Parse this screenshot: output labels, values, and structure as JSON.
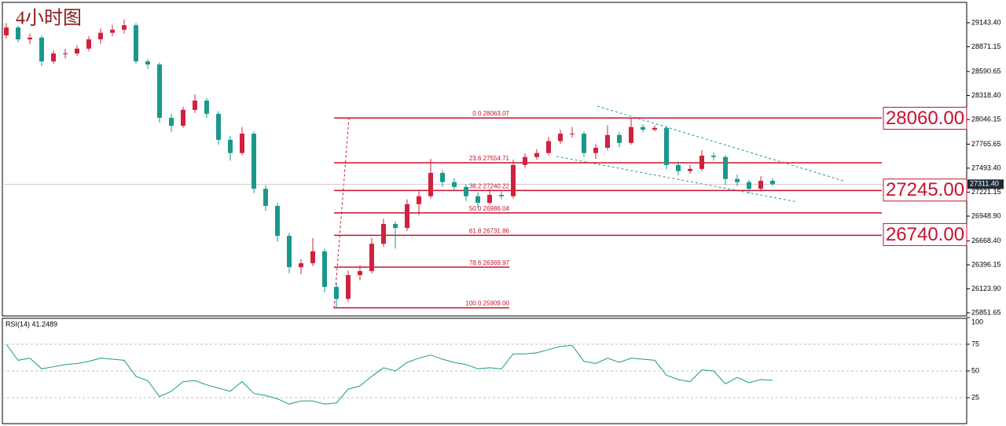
{
  "chart_data": [
    {
      "type": "candlestick",
      "title": "4小时图",
      "up_color": "#d0213f",
      "down_color": "#1a998b",
      "fib_color": "#c8102e",
      "ylim": [
        25816,
        29375
      ],
      "yticks": [
        {
          "value": 29143.4,
          "label": "29143.40"
        },
        {
          "value": 28871.15,
          "label": "28871.15"
        },
        {
          "value": 28590.65,
          "label": "28590.65"
        },
        {
          "value": 28318.4,
          "label": "28318.40"
        },
        {
          "value": 28046.15,
          "label": "28046.15"
        },
        {
          "value": 27765.65,
          "label": "27765.65"
        },
        {
          "value": 27493.4,
          "label": "27493.40"
        },
        {
          "value": 27221.15,
          "label": "27221.15"
        },
        {
          "value": 26948.9,
          "label": "26948.90"
        },
        {
          "value": 26668.4,
          "label": "26668.40"
        },
        {
          "value": 26396.15,
          "label": "26396.15"
        },
        {
          "value": 26123.9,
          "label": "26123.90"
        },
        {
          "value": 25851.65,
          "label": "25851.65"
        }
      ],
      "candles": [
        [
          29000,
          29140,
          28960,
          29090
        ],
        [
          29090,
          29110,
          28920,
          28955
        ],
        [
          28955,
          29020,
          28900,
          28975
        ],
        [
          28975,
          29000,
          28650,
          28705
        ],
        [
          28705,
          28830,
          28680,
          28795
        ],
        [
          28795,
          28850,
          28740,
          28795
        ],
        [
          28795,
          28890,
          28770,
          28850
        ],
        [
          28850,
          28990,
          28820,
          28955
        ],
        [
          28955,
          29080,
          28900,
          29030
        ],
        [
          29030,
          29120,
          28990,
          29065
        ],
        [
          29065,
          29180,
          29020,
          29115
        ],
        [
          29115,
          29140,
          28680,
          28705
        ],
        [
          28705,
          28730,
          28620,
          28670
        ],
        [
          28670,
          28690,
          28010,
          28065
        ],
        [
          28065,
          28110,
          27900,
          27975
        ],
        [
          27975,
          28190,
          27950,
          28155
        ],
        [
          28155,
          28330,
          28120,
          28260
        ],
        [
          28260,
          28290,
          28060,
          28110
        ],
        [
          28110,
          28140,
          27760,
          27815
        ],
        [
          27815,
          27860,
          27580,
          27665
        ],
        [
          27665,
          27960,
          27640,
          27885
        ],
        [
          27885,
          27910,
          27210,
          27260
        ],
        [
          27260,
          27300,
          27010,
          27065
        ],
        [
          27065,
          27100,
          26660,
          26725
        ],
        [
          26725,
          26760,
          26300,
          26370
        ],
        [
          26370,
          26460,
          26290,
          26415
        ],
        [
          26415,
          26700,
          26380,
          26550
        ],
        [
          26550,
          26580,
          26080,
          26145
        ],
        [
          26145,
          26190,
          25909,
          26010
        ],
        [
          26010,
          26330,
          25980,
          26280
        ],
        [
          26280,
          26390,
          26220,
          26325
        ],
        [
          26325,
          26700,
          26300,
          26635
        ],
        [
          26635,
          26920,
          26600,
          26860
        ],
        [
          26860,
          26890,
          26580,
          26815
        ],
        [
          26815,
          27140,
          26780,
          27085
        ],
        [
          27085,
          27230,
          26960,
          27175
        ],
        [
          27175,
          27600,
          27150,
          27440
        ],
        [
          27440,
          27470,
          27280,
          27335
        ],
        [
          27335,
          27380,
          27230,
          27280
        ],
        [
          27280,
          27310,
          27120,
          27175
        ],
        [
          27175,
          27220,
          27040,
          27100
        ],
        [
          27100,
          27260,
          27080,
          27190
        ],
        [
          27190,
          27230,
          27140,
          27175
        ],
        [
          27175,
          27590,
          27150,
          27530
        ],
        [
          27530,
          27660,
          27500,
          27620
        ],
        [
          27620,
          27710,
          27590,
          27665
        ],
        [
          27665,
          27850,
          27640,
          27800
        ],
        [
          27800,
          27930,
          27770,
          27885
        ],
        [
          27885,
          27960,
          27840,
          27885
        ],
        [
          27885,
          27910,
          27620,
          27665
        ],
        [
          27665,
          27770,
          27600,
          27725
        ],
        [
          27725,
          27980,
          27700,
          27870
        ],
        [
          27870,
          27900,
          27730,
          27780
        ],
        [
          27780,
          28063,
          27760,
          27960
        ],
        [
          27960,
          27990,
          27900,
          27930
        ],
        [
          27930,
          27980,
          27910,
          27950
        ],
        [
          27950,
          27970,
          27480,
          27530
        ],
        [
          27530,
          27570,
          27410,
          27460
        ],
        [
          27460,
          27530,
          27430,
          27485
        ],
        [
          27485,
          27700,
          27460,
          27635
        ],
        [
          27635,
          27670,
          27580,
          27620
        ],
        [
          27620,
          27640,
          27300,
          27370
        ],
        [
          27370,
          27420,
          27290,
          27335
        ],
        [
          27335,
          27360,
          27210,
          27260
        ],
        [
          27260,
          27400,
          27230,
          27350
        ],
        [
          27350,
          27380,
          27290,
          27311.4
        ]
      ],
      "fib_levels": [
        {
          "value": 28063.07,
          "label": "0.0  28063.07"
        },
        {
          "value": 27554.71,
          "label": "23.6  27554.71"
        },
        {
          "value": 27240.22,
          "label": "38.2  27240.22"
        },
        {
          "value": 26986.04,
          "label": "50.0  26986.04"
        },
        {
          "value": 26731.86,
          "label": "61.8  26731.86"
        },
        {
          "value": 26369.97,
          "label": "78.6  26369.97"
        },
        {
          "value": 25909.0,
          "label": "100.0  25909.00"
        }
      ],
      "price_boxes": [
        {
          "value": 28060,
          "label": "28060.00"
        },
        {
          "value": 27245,
          "label": "27245.00"
        },
        {
          "value": 26740,
          "label": "26740.00"
        }
      ],
      "last_price": {
        "value": 27311.4,
        "label": "27311.40"
      }
    },
    {
      "type": "line",
      "title": "RSI(14) 41.2489",
      "color": "#1a998b",
      "ylim": [
        0,
        100
      ],
      "yticks": [
        25,
        50,
        75,
        100
      ],
      "grid": true,
      "values": [
        75,
        60,
        62,
        52,
        54,
        56,
        57,
        59,
        62,
        61,
        60,
        45,
        41,
        26,
        31,
        40,
        41,
        37,
        34,
        31,
        40,
        29,
        27,
        24,
        19,
        22,
        22,
        19,
        20,
        33,
        36,
        45,
        53,
        50,
        58,
        62,
        65,
        61,
        58,
        56,
        52,
        53,
        52,
        66,
        66,
        67,
        70,
        73,
        74,
        59,
        57,
        62,
        58,
        62,
        61,
        60,
        46,
        42,
        40,
        51,
        50,
        38,
        44,
        39,
        42,
        41.2489
      ]
    }
  ]
}
